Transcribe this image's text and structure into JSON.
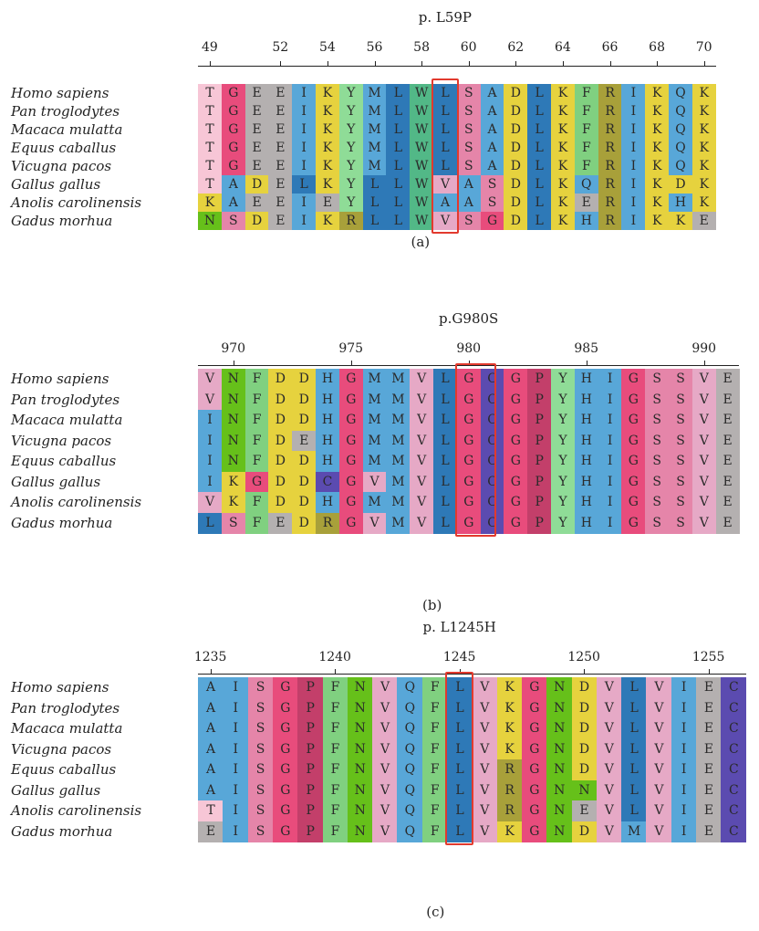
{
  "colors": {
    "A": "#58a7d8",
    "R": "#a8a03a",
    "N": "#66c01a",
    "D": "#e6d23e",
    "C": "#5b4bb0",
    "Q": "#58a7d8",
    "E": "#b4b0b0",
    "G": "#e84c7c",
    "H": "#58a7d8",
    "I": "#58a7d8",
    "L": "#2e79b7",
    "K": "#e6d23e",
    "M": "#58a7d8",
    "F": "#80d080",
    "P": "#c33f6a",
    "S": "#e585a9",
    "T": "#f7c6d6",
    "W": "#52b887",
    "Y": "#8fdc97",
    "V": "#e6a9c6",
    "highlight": "#e23a2e"
  },
  "panels": [
    {
      "id": "a",
      "mutation": "p. L59P",
      "caption": "(a)",
      "ticks": [
        {
          "label": "49",
          "col": 0
        },
        {
          "label": "52",
          "col": 3
        },
        {
          "label": "54",
          "col": 5
        },
        {
          "label": "56",
          "col": 7
        },
        {
          "label": "58",
          "col": 9
        },
        {
          "label": "60",
          "col": 11
        },
        {
          "label": "62",
          "col": 13
        },
        {
          "label": "64",
          "col": 15
        },
        {
          "label": "66",
          "col": 17
        },
        {
          "label": "68",
          "col": 19
        },
        {
          "label": "70",
          "col": 21
        }
      ],
      "highlight_col": 10,
      "species": [
        "Homo sapiens",
        "Pan troglodytes",
        "Macaca mulatta",
        "Equus caballus",
        "Vicugna pacos",
        "Gallus gallus",
        "Anolis carolinensis",
        "Gadus morhua"
      ],
      "sequences": [
        "TGEEIKYMLWLSADLKFRIKQK",
        "TGEEIKYMLWLSADLKFRIKQK",
        "TGEEIKYMLWLSADLKFRIKQK",
        "TGEEIKYMLWLSADLKFRIKQK",
        "TGEEIKYMLWLSADLKFRIKQK",
        "TADELKYLLWVASDLKQRIKDK",
        "KAEEIEYLLWAASDLKERIKHK",
        "NSDEIKRLLWVSGDLKHRIKKE"
      ]
    },
    {
      "id": "b",
      "mutation": "p.G980S",
      "caption": "(b)",
      "ticks": [
        {
          "label": "970",
          "col": 1
        },
        {
          "label": "975",
          "col": 6
        },
        {
          "label": "980",
          "col": 11
        },
        {
          "label": "985",
          "col": 16
        },
        {
          "label": "990",
          "col": 21
        }
      ],
      "highlight_col": 11,
      "species": [
        "Homo sapiens",
        "Pan troglodytes",
        "Macaca mulatta",
        "Vicugna pacos",
        "Equus caballus",
        "Gallus gallus",
        "Anolis carolinensis",
        "Gadus morhua"
      ],
      "sequences": [
        "VNFDDHGMMVLGCGPYHIGSSVE",
        "VNFDDHGMMVLGCGPYHIGSSVE",
        "INFDDHGMMVLGCGPYHIGSSVE",
        "INFDEHGMMVLGCGPYHIGSSVE",
        "INFDDHGMMVLGCGPYHIGSSVE",
        "IKGDDCGVMVLGCGPYHIGSSVE",
        "VKFDDHGMMVLGCGPYHIGSSVE",
        "LSFEDRGVMVLGCGPYHIGSSVE"
      ]
    },
    {
      "id": "c",
      "mutation": "p. L1245H",
      "caption": "(c)",
      "ticks": [
        {
          "label": "1235",
          "col": 0
        },
        {
          "label": "1240",
          "col": 5
        },
        {
          "label": "1245",
          "col": 10
        },
        {
          "label": "1250",
          "col": 15
        },
        {
          "label": "1255",
          "col": 20
        }
      ],
      "highlight_col": 10,
      "species": [
        "Homo sapiens",
        "Pan troglodytes",
        "Macaca mulatta",
        "Vicugna pacos",
        "Equus caballus",
        "Gallus gallus",
        "Anolis carolinensis",
        "Gadus morhua"
      ],
      "sequences": [
        "AISGPFNVQFLVKGNDVLVIEC",
        "AISGPFNVQFLVKGNDVLVIEC",
        "AISGPFNVQFLVKGNDVLVIEC",
        "AISGPFNVQFLVKGNDVLVIEC",
        "AISGPFNVQFLVRGNDVLVIEC",
        "AISGPFNVQFLVRGNNVLVIEC",
        "TISGPFNVQFLVRGNEVLVIEC",
        "EISGPFNVQFLVKGNDVMVIEC"
      ]
    }
  ]
}
